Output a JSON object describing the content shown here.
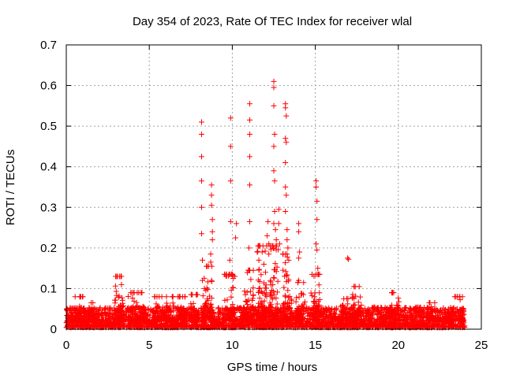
{
  "chart_data": {
    "type": "scatter",
    "title": "Day 354 of 2023, Rate Of TEC Index for receiver wlal",
    "xlabel": "GPS time / hours",
    "ylabel": "ROTI / TECUs",
    "xlim": [
      0,
      25
    ],
    "ylim": [
      0,
      0.7
    ],
    "xticks": [
      "0",
      "5",
      "10",
      "15",
      "20",
      "25"
    ],
    "yticks": [
      "0",
      "0.1",
      "0.2",
      "0.3",
      "0.4",
      "0.5",
      "0.6",
      "0.7"
    ],
    "grid": true,
    "marker": "+",
    "marker_color": "#ff0000",
    "baseline": {
      "x_start": 0,
      "x_end": 24,
      "typical_range": [
        0.0,
        0.05
      ]
    },
    "bursts": [
      {
        "x": 0.8,
        "peak": 0.075
      },
      {
        "x": 1.5,
        "peak": 0.06
      },
      {
        "x": 3.2,
        "peak": 0.125
      },
      {
        "x": 4.0,
        "peak": 0.085
      },
      {
        "x": 4.5,
        "peak": 0.085
      },
      {
        "x": 5.5,
        "peak": 0.075
      },
      {
        "x": 6.2,
        "peak": 0.075
      },
      {
        "x": 7.0,
        "peak": 0.075
      },
      {
        "x": 7.7,
        "peak": 0.08
      },
      {
        "x": 8.5,
        "peak": 0.15
      },
      {
        "x": 9.8,
        "peak": 0.13
      },
      {
        "x": 11.0,
        "peak": 0.14
      },
      {
        "x": 11.8,
        "peak": 0.2
      },
      {
        "x": 12.5,
        "peak": 0.2
      },
      {
        "x": 13.3,
        "peak": 0.18
      },
      {
        "x": 14.1,
        "peak": 0.11
      },
      {
        "x": 15.0,
        "peak": 0.13
      },
      {
        "x": 16.7,
        "peak": 0.07
      },
      {
        "x": 17.5,
        "peak": 0.1
      },
      {
        "x": 19.8,
        "peak": 0.085
      },
      {
        "x": 22.0,
        "peak": 0.06
      },
      {
        "x": 23.6,
        "peak": 0.075
      }
    ],
    "points": [
      [
        8.15,
        0.51
      ],
      [
        8.15,
        0.48
      ],
      [
        8.15,
        0.425
      ],
      [
        8.15,
        0.365
      ],
      [
        8.15,
        0.3
      ],
      [
        8.15,
        0.235
      ],
      [
        8.2,
        0.17
      ],
      [
        8.2,
        0.12
      ],
      [
        8.75,
        0.355
      ],
      [
        8.75,
        0.33
      ],
      [
        8.75,
        0.305
      ],
      [
        8.8,
        0.27
      ],
      [
        8.8,
        0.24
      ],
      [
        8.8,
        0.22
      ],
      [
        8.7,
        0.185
      ],
      [
        8.7,
        0.165
      ],
      [
        8.75,
        0.12
      ],
      [
        9.9,
        0.52
      ],
      [
        9.9,
        0.45
      ],
      [
        9.9,
        0.365
      ],
      [
        9.9,
        0.265
      ],
      [
        9.85,
        0.17
      ],
      [
        10.05,
        0.125
      ],
      [
        10.25,
        0.26
      ],
      [
        10.2,
        0.225
      ],
      [
        10.15,
        0.13
      ],
      [
        11.05,
        0.555
      ],
      [
        11.05,
        0.515
      ],
      [
        11.05,
        0.48
      ],
      [
        11.05,
        0.425
      ],
      [
        11.05,
        0.355
      ],
      [
        11.05,
        0.265
      ],
      [
        11.0,
        0.2
      ],
      [
        11.5,
        0.19
      ],
      [
        11.6,
        0.17
      ],
      [
        11.8,
        0.19
      ],
      [
        11.9,
        0.16
      ],
      [
        12.0,
        0.14
      ],
      [
        12.1,
        0.23
      ],
      [
        12.15,
        0.265
      ],
      [
        12.2,
        0.21
      ],
      [
        12.2,
        0.185
      ],
      [
        12.5,
        0.61
      ],
      [
        12.5,
        0.595
      ],
      [
        12.5,
        0.55
      ],
      [
        12.55,
        0.48
      ],
      [
        12.5,
        0.45
      ],
      [
        12.5,
        0.39
      ],
      [
        12.55,
        0.365
      ],
      [
        12.55,
        0.29
      ],
      [
        12.5,
        0.26
      ],
      [
        12.6,
        0.245
      ],
      [
        12.65,
        0.22
      ],
      [
        12.8,
        0.295
      ],
      [
        12.8,
        0.26
      ],
      [
        12.85,
        0.21
      ],
      [
        13.2,
        0.555
      ],
      [
        13.2,
        0.545
      ],
      [
        13.25,
        0.525
      ],
      [
        13.2,
        0.47
      ],
      [
        13.25,
        0.46
      ],
      [
        13.2,
        0.41
      ],
      [
        13.2,
        0.35
      ],
      [
        13.25,
        0.33
      ],
      [
        13.2,
        0.29
      ],
      [
        13.3,
        0.245
      ],
      [
        13.3,
        0.22
      ],
      [
        13.35,
        0.2
      ],
      [
        13.4,
        0.17
      ],
      [
        14.0,
        0.26
      ],
      [
        14.0,
        0.24
      ],
      [
        14.05,
        0.19
      ],
      [
        14.0,
        0.175
      ],
      [
        14.0,
        0.12
      ],
      [
        15.05,
        0.365
      ],
      [
        15.05,
        0.35
      ],
      [
        15.1,
        0.315
      ],
      [
        15.1,
        0.27
      ],
      [
        15.05,
        0.21
      ],
      [
        15.1,
        0.195
      ],
      [
        15.15,
        0.15
      ],
      [
        16.95,
        0.175
      ],
      [
        17.0,
        0.172
      ]
    ]
  }
}
